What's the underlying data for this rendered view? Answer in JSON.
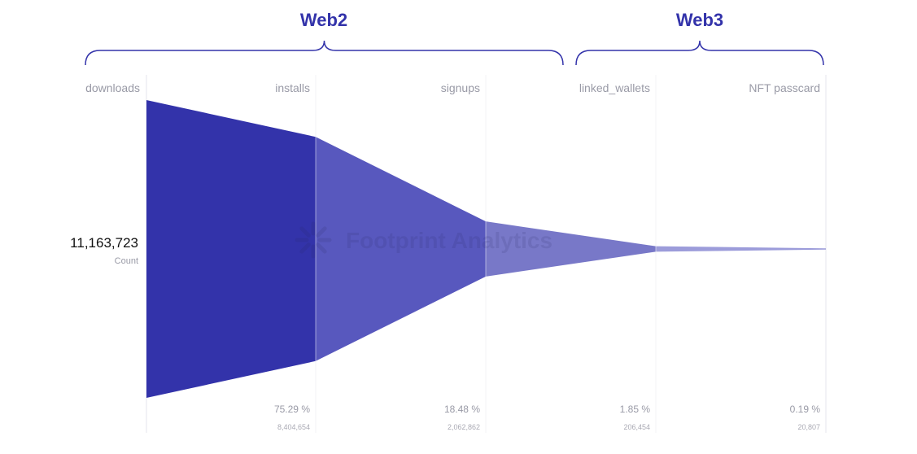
{
  "chart_data": {
    "type": "funnel",
    "groups": [
      {
        "label": "Web2",
        "from": "downloads",
        "to": "signups"
      },
      {
        "label": "Web3",
        "from": "linked_wallets",
        "to": "NFT passcard"
      }
    ],
    "categories": [
      "downloads",
      "installs",
      "signups",
      "linked_wallets",
      "NFT passcard"
    ],
    "values": [
      11163723,
      8404654,
      2062862,
      206454,
      20807
    ],
    "percent_labels": [
      "",
      "75.29 %",
      "18.48 %",
      "1.85 %",
      "0.19 %"
    ],
    "count_labels": [
      "",
      "8,404,654",
      "2,062,862",
      "206,454",
      "20,807"
    ],
    "total_label": "11,163,723",
    "total_caption": "Count",
    "colors": [
      "#3333aa",
      "#5858be",
      "#7878c8",
      "#9c9cda"
    ],
    "watermark": "Footprint Analytics"
  }
}
